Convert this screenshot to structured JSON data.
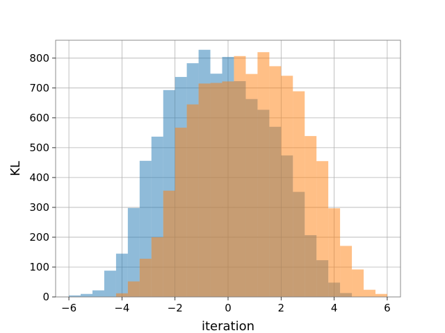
{
  "chart_data": {
    "type": "bar",
    "xlabel": "iteration",
    "ylabel": "KL",
    "xlim": [
      -6.5,
      6.5
    ],
    "ylim": [
      0,
      860
    ],
    "grid": true,
    "legend": "none",
    "x_ticks": [
      {
        "value": -6,
        "label": "−6"
      },
      {
        "value": -4,
        "label": "−4"
      },
      {
        "value": -2,
        "label": "−2"
      },
      {
        "value": 0,
        "label": "0"
      },
      {
        "value": 2,
        "label": "2"
      },
      {
        "value": 4,
        "label": "4"
      },
      {
        "value": 6,
        "label": "6"
      }
    ],
    "y_ticks": [
      {
        "value": 0,
        "label": "0"
      },
      {
        "value": 100,
        "label": "100"
      },
      {
        "value": 200,
        "label": "200"
      },
      {
        "value": 300,
        "label": "300"
      },
      {
        "value": 400,
        "label": "400"
      },
      {
        "value": 500,
        "label": "500"
      },
      {
        "value": 600,
        "label": "600"
      },
      {
        "value": 700,
        "label": "700"
      },
      {
        "value": 800,
        "label": "800"
      }
    ],
    "series": [
      {
        "color": "#1f77b4",
        "opacity": 0.5,
        "bin_edges": [
          -6.0,
          -5.556,
          -5.111,
          -4.667,
          -4.222,
          -3.778,
          -3.333,
          -2.889,
          -2.444,
          -2.0,
          -1.556,
          -1.111,
          -0.667,
          -0.222,
          0.222,
          0.667,
          1.111,
          1.556,
          2.0,
          2.444,
          2.889,
          3.333,
          3.778,
          4.222,
          4.667,
          5.111,
          5.556,
          6.0
        ],
        "values": [
          5,
          10,
          22,
          88,
          145,
          298,
          456,
          537,
          693,
          737,
          783,
          828,
          748,
          804,
          723,
          663,
          627,
          570,
          474,
          352,
          207,
          123,
          48,
          13,
          0,
          0,
          0
        ]
      },
      {
        "color": "#ff7f0e",
        "opacity": 0.5,
        "bin_edges": [
          -6.0,
          -5.556,
          -5.111,
          -4.667,
          -4.222,
          -3.778,
          -3.333,
          -2.889,
          -2.444,
          -2.0,
          -1.556,
          -1.111,
          -0.667,
          -0.222,
          0.222,
          0.667,
          1.111,
          1.556,
          2.0,
          2.444,
          2.889,
          3.333,
          3.778,
          4.222,
          4.667,
          5.111,
          5.556,
          6.0
        ],
        "values": [
          0,
          0,
          0,
          0,
          12,
          52,
          128,
          200,
          356,
          567,
          645,
          715,
          717,
          722,
          807,
          747,
          820,
          773,
          741,
          689,
          539,
          455,
          297,
          171,
          92,
          24,
          10
        ]
      }
    ]
  }
}
